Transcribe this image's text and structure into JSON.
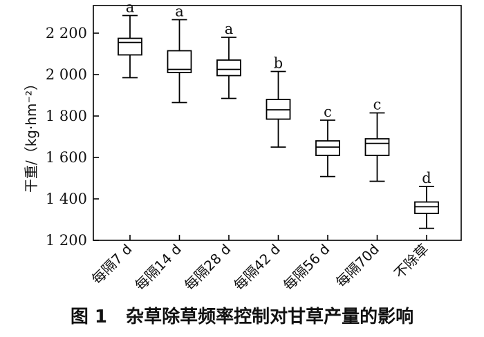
{
  "caption": "图 1   杂草除草频率控制对甘草产量的影响",
  "chart_data": {
    "type": "box",
    "ylabel": "干重/（kg·hm⁻²）",
    "xlabel": "",
    "ylim": [
      1200,
      2300
    ],
    "yticks": [
      1200,
      1400,
      1600,
      1800,
      2000,
      2200
    ],
    "ytick_labels": [
      "1 200",
      "1 400",
      "1 600",
      "1 800",
      "2 000",
      "2 200"
    ],
    "categories": [
      "每隔7 d",
      "每隔14 d",
      "每隔28 d",
      "每隔42 d",
      "每隔56 d",
      "每隔70d",
      "不除草"
    ],
    "boxes": [
      {
        "min": 1985,
        "q1": 2095,
        "median": 2155,
        "q3": 2175,
        "max": 2285,
        "letter": "a"
      },
      {
        "min": 1865,
        "q1": 2010,
        "median": 2025,
        "q3": 2115,
        "max": 2265,
        "letter": "a"
      },
      {
        "min": 1885,
        "q1": 1995,
        "median": 2025,
        "q3": 2070,
        "max": 2180,
        "letter": "a"
      },
      {
        "min": 1650,
        "q1": 1785,
        "median": 1830,
        "q3": 1880,
        "max": 2015,
        "letter": "b"
      },
      {
        "min": 1508,
        "q1": 1610,
        "median": 1650,
        "q3": 1680,
        "max": 1780,
        "letter": "c"
      },
      {
        "min": 1485,
        "q1": 1610,
        "median": 1668,
        "q3": 1690,
        "max": 1815,
        "letter": "c"
      },
      {
        "min": 1258,
        "q1": 1330,
        "median": 1362,
        "q3": 1385,
        "max": 1460,
        "letter": "d"
      }
    ]
  }
}
